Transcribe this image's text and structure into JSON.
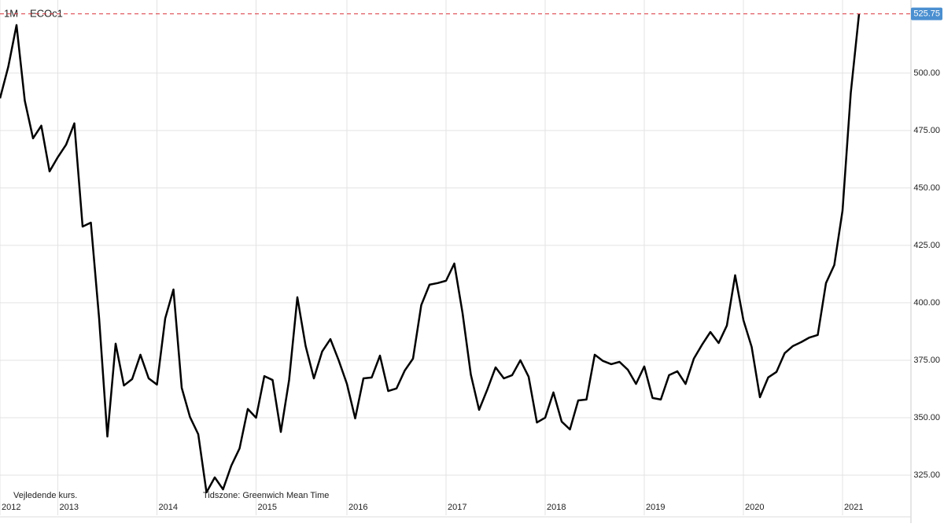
{
  "chart_data": {
    "type": "line",
    "interval": "1M",
    "annotations": [
      "Vejledende kurs.",
      "Tidszone: Greenwich Mean Time"
    ],
    "categories": [
      "2012",
      null,
      null,
      null,
      null,
      null,
      null,
      "2013",
      null,
      null,
      null,
      null,
      null,
      null,
      null,
      null,
      null,
      null,
      null,
      "2014",
      null,
      null,
      null,
      null,
      null,
      null,
      null,
      null,
      null,
      null,
      null,
      "2015",
      null,
      null,
      null,
      null,
      null,
      null,
      null,
      null,
      null,
      null,
      "2016",
      null,
      null,
      null,
      null,
      null,
      null,
      null,
      null,
      null,
      null,
      null,
      "2017",
      null,
      null,
      null,
      null,
      null,
      null,
      null,
      null,
      null,
      null,
      null,
      "2018",
      null,
      null,
      null,
      null,
      null,
      null,
      null,
      null,
      null,
      null,
      null,
      "2019",
      null,
      null,
      null,
      null,
      null,
      null,
      null,
      null,
      null,
      null,
      null,
      "2020",
      null,
      null,
      null,
      null,
      null,
      null,
      null,
      null,
      null,
      null,
      null,
      "2021",
      null,
      null
    ],
    "series": [
      {
        "name": "ECOc1",
        "color": "#000000",
        "values": [
          489.0,
          502.7,
          520.9,
          488.0,
          471.6,
          477.1,
          457.2,
          463.4,
          468.8,
          478.1,
          433.2,
          434.9,
          393.2,
          341.8,
          382.2,
          364.0,
          366.8,
          377.4,
          367.1,
          364.4,
          393.2,
          405.8,
          363.0,
          350.3,
          342.8,
          317.5,
          324.0,
          318.8,
          329.1,
          336.6,
          353.8,
          350.0,
          368.1,
          366.4,
          343.8,
          366.4,
          402.4,
          381.2,
          367.1,
          378.8,
          384.2,
          375.0,
          364.7,
          349.7,
          367.1,
          367.5,
          377.0,
          361.6,
          362.7,
          370.5,
          375.7,
          399.0,
          407.9,
          408.6,
          409.6,
          417.1,
          395.5,
          368.8,
          353.4,
          362.3,
          371.9,
          367.1,
          368.5,
          375.0,
          367.8,
          347.9,
          350.0,
          361.0,
          348.3,
          344.9,
          357.5,
          357.9,
          377.4,
          374.7,
          373.3,
          374.3,
          370.9,
          364.7,
          372.3,
          358.6,
          357.9,
          368.5,
          370.2,
          364.7,
          375.7,
          381.8,
          387.3,
          382.5,
          390.1,
          412.0,
          392.5,
          380.8,
          358.9,
          367.5,
          369.9,
          378.1,
          381.2,
          382.9,
          384.9,
          386.0,
          408.6,
          416.4,
          440.1,
          491.4,
          525.75
        ]
      }
    ],
    "ylim": [
      306.5,
      531.8
    ],
    "yticks": [
      {
        "value": 325,
        "label": "325.00"
      },
      {
        "value": 350,
        "label": "350.00"
      },
      {
        "value": 375,
        "label": "375.00"
      },
      {
        "value": 400,
        "label": "400.00"
      },
      {
        "value": 425,
        "label": "425.00"
      },
      {
        "value": 450,
        "label": "450.00"
      },
      {
        "value": 475,
        "label": "475.00"
      },
      {
        "value": 500,
        "label": "500.00"
      }
    ],
    "grid": true,
    "last_value_marker": true
  }
}
